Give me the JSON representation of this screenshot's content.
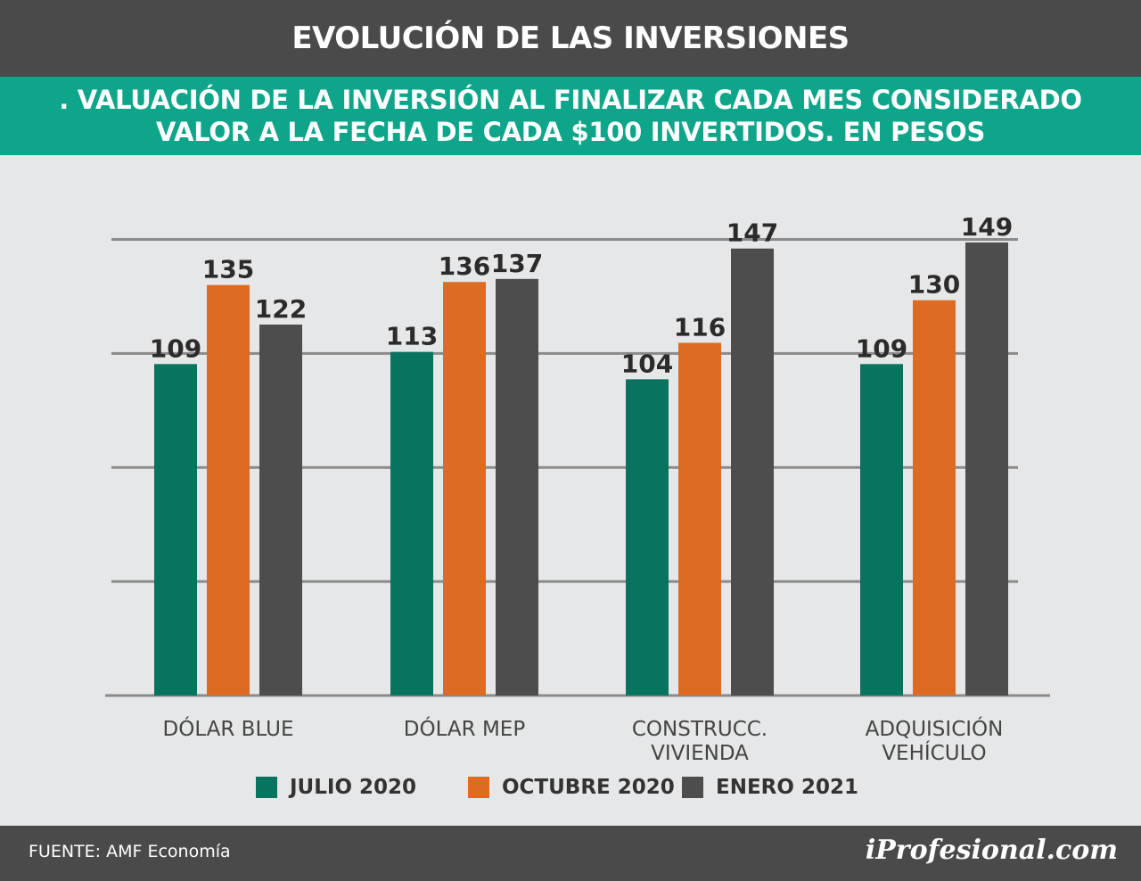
{
  "header": {
    "title": "EVOLUCIÓN DE LAS INVERSIONES",
    "subtitle_line1": ". VALUACIÓN DE LA INVERSIÓN AL FINALIZAR CADA MES CONSIDERADO",
    "subtitle_line2": "VALOR A LA FECHA DE CADA $100 INVERTIDOS. EN PESOS"
  },
  "colors": {
    "julio": "#08735f",
    "octubre": "#dd6b24",
    "enero": "#4d4d4d",
    "header_bg": "#4a4a4a",
    "subtitle_bg": "#0ea58a"
  },
  "chart_data": {
    "type": "bar",
    "categories": [
      "DÓLAR BLUE",
      "DÓLAR MEP",
      "CONSTRUCC.\nVIVIENDA",
      "ADQUISICIÓN\nVEHÍCULO"
    ],
    "series": [
      {
        "name": "JULIO 2020",
        "values": [
          109,
          113,
          104,
          109
        ]
      },
      {
        "name": "OCTUBRE 2020",
        "values": [
          135,
          136,
          116,
          130
        ]
      },
      {
        "name": "ENERO 2021",
        "values": [
          122,
          137,
          147,
          149
        ]
      }
    ],
    "ylim": [
      0,
      150
    ],
    "grid": true,
    "legend": "bottom"
  },
  "legend": [
    {
      "label": "JULIO 2020",
      "color_key": "julio"
    },
    {
      "label": "OCTUBRE 2020",
      "color_key": "octubre"
    },
    {
      "label": "ENERO 2021",
      "color_key": "enero"
    }
  ],
  "footer": {
    "source": "FUENTE: AMF Economía",
    "brand": "iProfesional.com"
  }
}
